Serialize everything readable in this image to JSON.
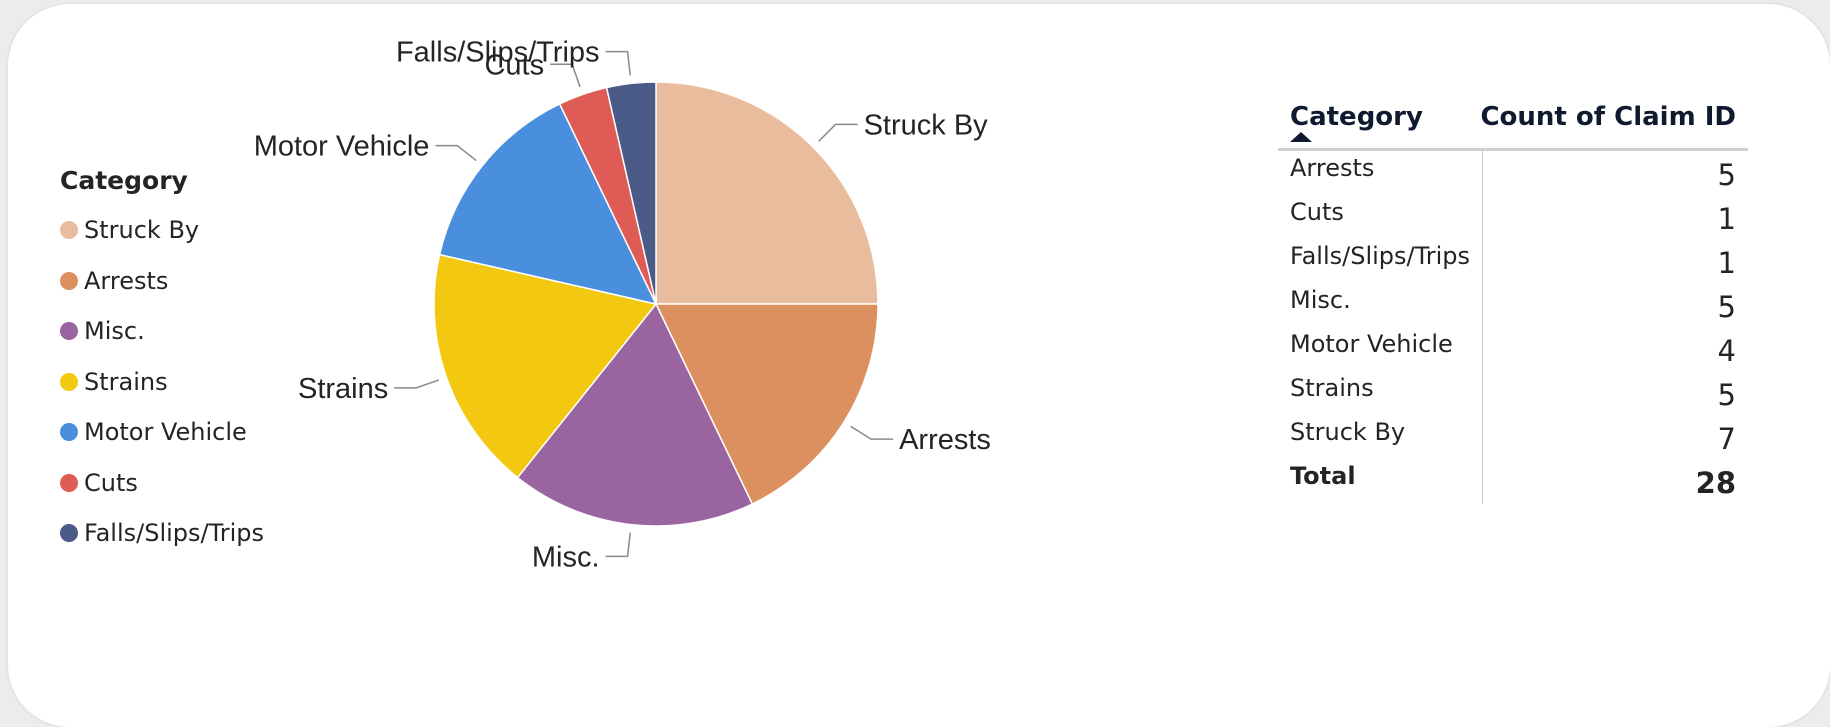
{
  "legend": {
    "title": "Category",
    "items": [
      {
        "label": "Struck By",
        "color": "#E8BC9C"
      },
      {
        "label": "Arrests",
        "color": "#DD905F"
      },
      {
        "label": "Misc.",
        "color": "#9A64A0"
      },
      {
        "label": "Strains",
        "color": "#F2C811"
      },
      {
        "label": "Motor Vehicle",
        "color": "#4A8FDD"
      },
      {
        "label": "Cuts",
        "color": "#DF5B55"
      },
      {
        "label": "Falls/Slips/Trips",
        "color": "#4A5B88"
      }
    ]
  },
  "chart_data": {
    "type": "pie",
    "categories": [
      "Struck By",
      "Arrests",
      "Misc.",
      "Strains",
      "Motor Vehicle",
      "Cuts",
      "Falls/Slips/Trips"
    ],
    "values": [
      7,
      5,
      5,
      5,
      4,
      1,
      1
    ],
    "colors": [
      "#E8BC9C",
      "#DD905F",
      "#9A64A0",
      "#F2C811",
      "#4A8FDD",
      "#DF5B55",
      "#4A5B88"
    ],
    "legend_title": "Category",
    "legend_position": "left",
    "data_labels": [
      "Struck By",
      "Arrests",
      "Misc.",
      "Strains",
      "Motor Vehicle",
      "Cuts",
      "Falls/Slips/Trips"
    ]
  },
  "matrix": {
    "headers": [
      "Category",
      "Count of Claim ID"
    ],
    "sort": "ascending",
    "rows": [
      {
        "category": "Arrests",
        "count": "5"
      },
      {
        "category": "Cuts",
        "count": "1"
      },
      {
        "category": "Falls/Slips/Trips",
        "count": "1"
      },
      {
        "category": "Misc.",
        "count": "5"
      },
      {
        "category": "Motor Vehicle",
        "count": "4"
      },
      {
        "category": "Strains",
        "count": "5"
      },
      {
        "category": "Struck By",
        "count": "7"
      }
    ],
    "total": {
      "category": "Total",
      "count": "28"
    }
  }
}
